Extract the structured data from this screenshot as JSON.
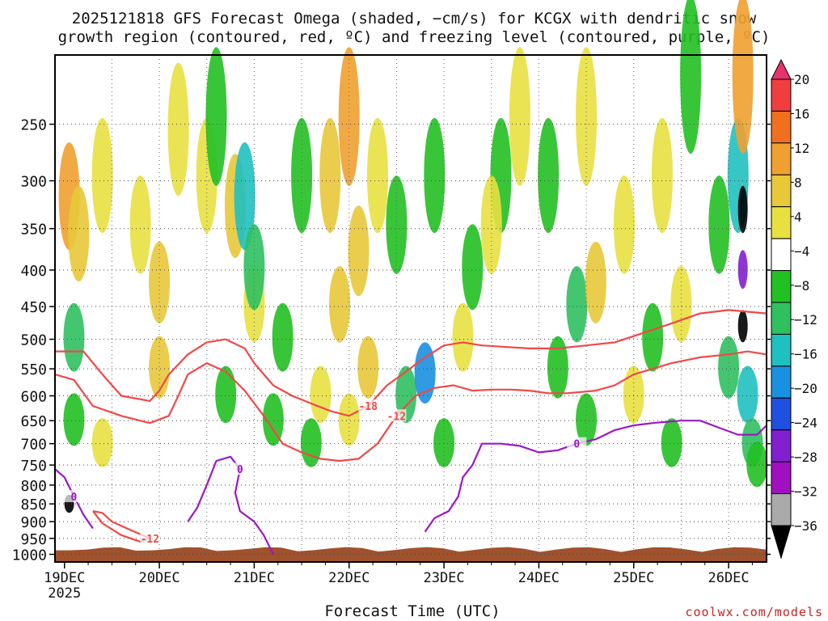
{
  "chart_data": {
    "type": "heatmap",
    "title_line1": "2025121818 GFS Forecast Omega (shaded, −cm/s) for KCGX with dendritic snow",
    "title_line2": "growth region (contoured, red, ºC) and freezing level (contoured, purple, ºC)",
    "xlabel": "Forecast Time (UTC)",
    "ylabel": "",
    "x_ticks": [
      "19DEC",
      "20DEC",
      "21DEC",
      "22DEC",
      "23DEC",
      "24DEC",
      "25DEC",
      "26DEC"
    ],
    "x_year": "2025",
    "xlim_days": [
      -0.1,
      7.4
    ],
    "y_ticks": [
      250,
      300,
      350,
      400,
      450,
      500,
      550,
      600,
      650,
      700,
      750,
      800,
      850,
      900,
      950,
      1000
    ],
    "ylim_hpa": [
      1025,
      200
    ],
    "colorbar_labels": [
      "20",
      "16",
      "12",
      "8",
      "4",
      "−4",
      "−8",
      "−12",
      "−16",
      "−20",
      "−24",
      "−28",
      "−32",
      "−36"
    ],
    "colorbar_colors": [
      "#e8336b",
      "#f03e3e",
      "#f07020",
      "#f0a030",
      "#e8c838",
      "#e8e040",
      "#ffffff",
      "#22c022",
      "#30c060",
      "#20c0c0",
      "#1a90e0",
      "#2050e0",
      "#8020d0",
      "#a010c0",
      "#aaaaaa",
      "#000000"
    ],
    "dgz_contours": [
      {
        "label": "-12",
        "pts": [
          [
            -0.1,
            560
          ],
          [
            0.1,
            570
          ],
          [
            0.3,
            620
          ],
          [
            0.6,
            640
          ],
          [
            0.9,
            655
          ],
          [
            1.1,
            640
          ],
          [
            1.2,
            600
          ],
          [
            1.3,
            560
          ],
          [
            1.5,
            540
          ],
          [
            1.7,
            555
          ],
          [
            1.9,
            590
          ],
          [
            2.1,
            640
          ],
          [
            2.3,
            700
          ],
          [
            2.5,
            720
          ],
          [
            2.7,
            735
          ],
          [
            2.9,
            740
          ],
          [
            3.1,
            735
          ],
          [
            3.3,
            700
          ],
          [
            3.5,
            640
          ],
          [
            3.7,
            600
          ],
          [
            3.9,
            585
          ],
          [
            4.1,
            580
          ],
          [
            4.3,
            590
          ],
          [
            4.5,
            588
          ],
          [
            4.7,
            588
          ],
          [
            4.9,
            590
          ],
          [
            5.1,
            595
          ],
          [
            5.3,
            595
          ],
          [
            5.6,
            590
          ],
          [
            5.8,
            580
          ],
          [
            6.0,
            560
          ],
          [
            6.2,
            550
          ],
          [
            6.4,
            540
          ],
          [
            6.7,
            530
          ],
          [
            7.0,
            525
          ],
          [
            7.2,
            520
          ],
          [
            7.4,
            525
          ]
        ]
      },
      {
        "label": "-18",
        "pts": [
          [
            -0.1,
            520
          ],
          [
            0.2,
            520
          ],
          [
            0.4,
            560
          ],
          [
            0.6,
            600
          ],
          [
            0.9,
            610
          ],
          [
            1.0,
            590
          ],
          [
            1.1,
            560
          ],
          [
            1.3,
            525
          ],
          [
            1.5,
            505
          ],
          [
            1.7,
            500
          ],
          [
            1.9,
            515
          ],
          [
            2.0,
            540
          ],
          [
            2.2,
            580
          ],
          [
            2.4,
            600
          ],
          [
            2.6,
            615
          ],
          [
            2.8,
            630
          ],
          [
            3.0,
            640
          ],
          [
            3.2,
            620
          ],
          [
            3.4,
            580
          ],
          [
            3.6,
            555
          ],
          [
            3.8,
            530
          ],
          [
            4.0,
            510
          ],
          [
            4.2,
            505
          ],
          [
            4.4,
            510
          ],
          [
            4.6,
            512
          ],
          [
            4.9,
            515
          ],
          [
            5.2,
            515
          ],
          [
            5.5,
            510
          ],
          [
            5.8,
            505
          ],
          [
            6.1,
            490
          ],
          [
            6.4,
            475
          ],
          [
            6.7,
            460
          ],
          [
            7.0,
            455
          ],
          [
            7.4,
            460
          ]
        ]
      },
      {
        "label": "-12",
        "pts": [
          [
            0.3,
            870
          ],
          [
            0.4,
            905
          ],
          [
            0.6,
            940
          ],
          [
            0.8,
            960
          ],
          [
            0.9,
            950
          ],
          [
            0.7,
            925
          ],
          [
            0.5,
            900
          ],
          [
            0.4,
            875
          ],
          [
            0.3,
            870
          ]
        ]
      }
    ],
    "freezing_contours": [
      {
        "label": "0",
        "pts": [
          [
            -0.1,
            760
          ],
          [
            0.0,
            780
          ],
          [
            0.1,
            830
          ],
          [
            0.2,
            880
          ],
          [
            0.3,
            920
          ]
        ]
      },
      {
        "label": "0",
        "pts": [
          [
            1.3,
            900
          ],
          [
            1.4,
            860
          ],
          [
            1.5,
            800
          ],
          [
            1.6,
            740
          ],
          [
            1.75,
            730
          ],
          [
            1.85,
            760
          ],
          [
            1.8,
            820
          ],
          [
            1.85,
            870
          ],
          [
            2.0,
            900
          ],
          [
            2.1,
            940
          ],
          [
            2.2,
            1000
          ]
        ]
      },
      {
        "label": "0",
        "pts": [
          [
            3.8,
            930
          ],
          [
            3.9,
            890
          ],
          [
            4.05,
            870
          ],
          [
            4.15,
            830
          ],
          [
            4.2,
            780
          ],
          [
            4.3,
            750
          ],
          [
            4.4,
            700
          ],
          [
            4.6,
            700
          ],
          [
            4.8,
            705
          ],
          [
            5.0,
            720
          ],
          [
            5.2,
            715
          ],
          [
            5.4,
            700
          ],
          [
            5.6,
            690
          ],
          [
            5.8,
            670
          ],
          [
            6.0,
            660
          ],
          [
            6.2,
            655
          ],
          [
            6.5,
            650
          ],
          [
            6.7,
            650
          ],
          [
            6.9,
            665
          ],
          [
            7.1,
            680
          ],
          [
            7.3,
            680
          ],
          [
            7.4,
            660
          ]
        ]
      }
    ],
    "omega_cells": [
      {
        "d": 0.05,
        "p": 320,
        "v": 12
      },
      {
        "d": 0.15,
        "p": 360,
        "v": 8
      },
      {
        "d": 0.1,
        "p": 500,
        "v": -12
      },
      {
        "d": 0.05,
        "p": 850,
        "v": -36
      },
      {
        "d": 0.1,
        "p": 650,
        "v": -8
      },
      {
        "d": 0.4,
        "p": 300,
        "v": 4
      },
      {
        "d": 0.8,
        "p": 350,
        "v": 4
      },
      {
        "d": 1.0,
        "p": 420,
        "v": 8
      },
      {
        "d": 1.2,
        "p": 260,
        "v": 4
      },
      {
        "d": 1.0,
        "p": 550,
        "v": 8
      },
      {
        "d": 0.4,
        "p": 700,
        "v": 4
      },
      {
        "d": 1.5,
        "p": 300,
        "v": 4
      },
      {
        "d": 1.8,
        "p": 330,
        "v": 8
      },
      {
        "d": 2.0,
        "p": 450,
        "v": 4
      },
      {
        "d": 1.6,
        "p": 250,
        "v": -8
      },
      {
        "d": 1.9,
        "p": 320,
        "v": -16
      },
      {
        "d": 2.0,
        "p": 400,
        "v": -12
      },
      {
        "d": 1.7,
        "p": 600,
        "v": -8
      },
      {
        "d": 2.2,
        "p": 650,
        "v": -8
      },
      {
        "d": 2.3,
        "p": 500,
        "v": -8
      },
      {
        "d": 2.5,
        "p": 300,
        "v": -8
      },
      {
        "d": 2.6,
        "p": 700,
        "v": -8
      },
      {
        "d": 2.8,
        "p": 300,
        "v": 8
      },
      {
        "d": 3.0,
        "p": 250,
        "v": 12
      },
      {
        "d": 2.9,
        "p": 450,
        "v": 8
      },
      {
        "d": 3.1,
        "p": 380,
        "v": 8
      },
      {
        "d": 3.2,
        "p": 550,
        "v": 8
      },
      {
        "d": 3.3,
        "p": 300,
        "v": 4
      },
      {
        "d": 2.7,
        "p": 600,
        "v": 4
      },
      {
        "d": 3.0,
        "p": 650,
        "v": 4
      },
      {
        "d": 3.5,
        "p": 350,
        "v": -8
      },
      {
        "d": 3.6,
        "p": 600,
        "v": -12
      },
      {
        "d": 3.8,
        "p": 560,
        "v": -20
      },
      {
        "d": 3.9,
        "p": 300,
        "v": -8
      },
      {
        "d": 4.0,
        "p": 700,
        "v": -8
      },
      {
        "d": 4.3,
        "p": 400,
        "v": -8
      },
      {
        "d": 4.6,
        "p": 300,
        "v": -8
      },
      {
        "d": 4.2,
        "p": 500,
        "v": 4
      },
      {
        "d": 4.5,
        "p": 350,
        "v": 4
      },
      {
        "d": 4.8,
        "p": 250,
        "v": 4
      },
      {
        "d": 5.1,
        "p": 300,
        "v": -8
      },
      {
        "d": 5.2,
        "p": 550,
        "v": -8
      },
      {
        "d": 5.4,
        "p": 450,
        "v": -12
      },
      {
        "d": 5.5,
        "p": 650,
        "v": -8
      },
      {
        "d": 5.5,
        "p": 250,
        "v": 4
      },
      {
        "d": 5.6,
        "p": 420,
        "v": 8
      },
      {
        "d": 5.9,
        "p": 350,
        "v": 4
      },
      {
        "d": 6.0,
        "p": 600,
        "v": 4
      },
      {
        "d": 6.3,
        "p": 300,
        "v": 4
      },
      {
        "d": 6.5,
        "p": 450,
        "v": 4
      },
      {
        "d": 6.2,
        "p": 500,
        "v": -8
      },
      {
        "d": 6.4,
        "p": 700,
        "v": -8
      },
      {
        "d": 6.6,
        "p": 220,
        "v": -8
      },
      {
        "d": 6.9,
        "p": 350,
        "v": -8
      },
      {
        "d": 7.0,
        "p": 550,
        "v": -12
      },
      {
        "d": 7.1,
        "p": 300,
        "v": -16
      },
      {
        "d": 7.15,
        "p": 400,
        "v": -28
      },
      {
        "d": 7.15,
        "p": 480,
        "v": -36
      },
      {
        "d": 7.15,
        "p": 330,
        "v": -36
      },
      {
        "d": 7.2,
        "p": 600,
        "v": -16
      },
      {
        "d": 7.25,
        "p": 700,
        "v": -12
      },
      {
        "d": 7.3,
        "p": 750,
        "v": -8
      },
      {
        "d": 7.15,
        "p": 220,
        "v": 12
      }
    ]
  },
  "credit": "coolwx.com/models"
}
